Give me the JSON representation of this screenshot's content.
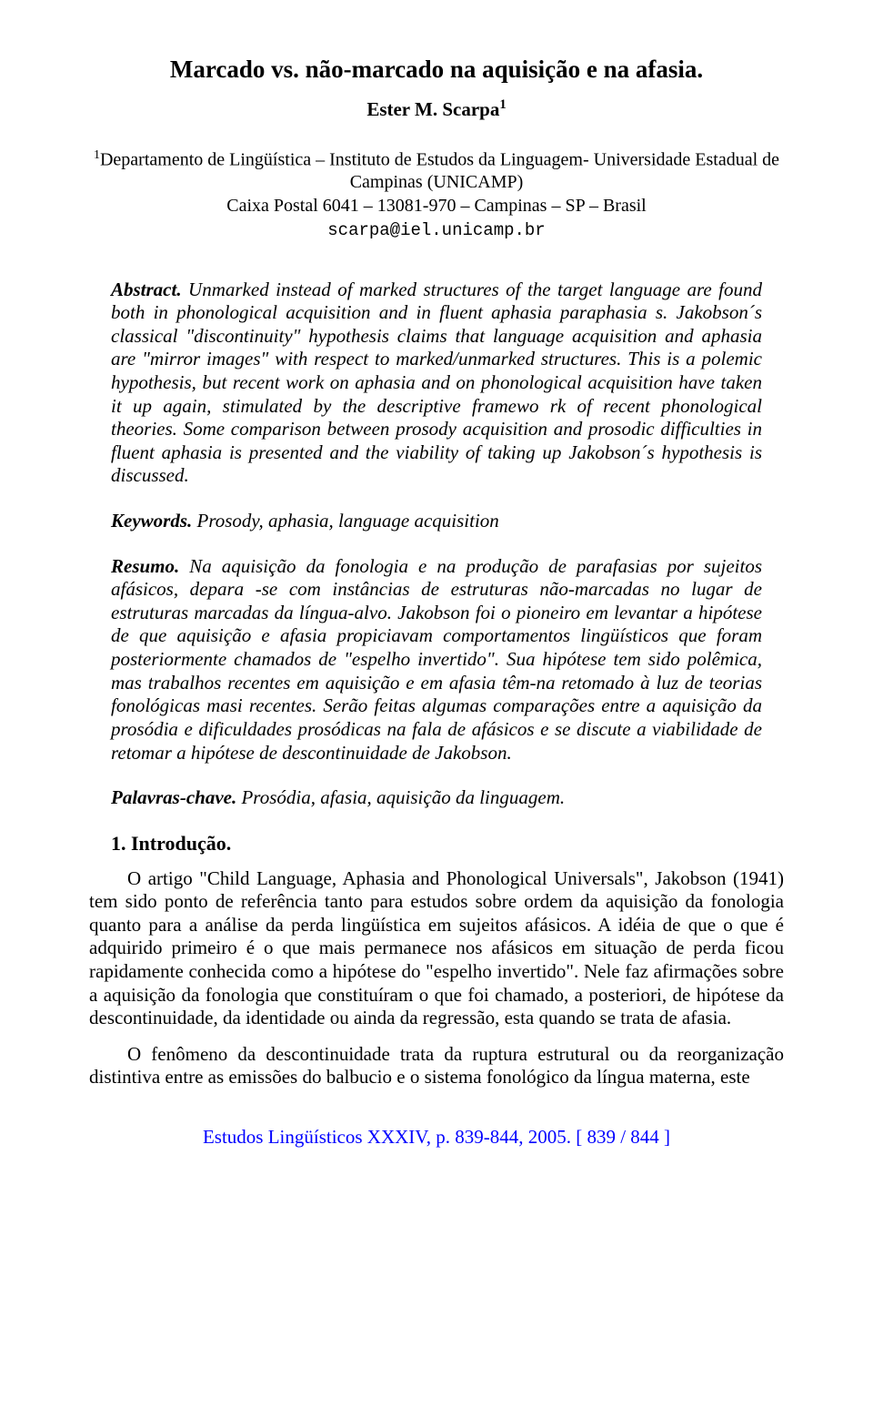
{
  "title": "Marcado vs. não-marcado na aquisição e na afasia.",
  "author_name": "Ester M. Scarpa",
  "author_sup": "1",
  "affiliation": {
    "line1_sup": "1",
    "line1": "Departamento de Lingüística – Instituto de Estudos da Linguagem- Universidade Estadual de Campinas (UNICAMP)",
    "line2": "Caixa Postal 6041 – 13081-970 – Campinas – SP – Brasil",
    "email": "scarpa@iel.unicamp.br"
  },
  "abstract": {
    "label": "Abstract.",
    "text": "Unmarked instead of marked structures of the target language are found both in phonological acquisition and in fluent aphasia paraphasia s. Jakobson´s classical \"discontinuity\" hypothesis claims that language acquisition and aphasia are \"mirror images\" with respect to marked/unmarked structures. This is a polemic hypothesis, but recent work on aphasia and on phonological acquisition have taken it up again, stimulated by the descriptive framewo rk of recent phonological theories. Some comparison between prosody acquisition and prosodic difficulties in fluent aphasia is presented and the viability of taking up Jakobson´s hypothesis is discussed."
  },
  "keywords": {
    "label": "Keywords.",
    "text": "Prosody, aphasia, language acquisition"
  },
  "resumo": {
    "label": "Resumo.",
    "text": "Na aquisição da fonologia e na produção de parafasias por sujeitos afásicos, depara -se com instâncias de estruturas não-marcadas no lugar de estruturas marcadas da língua-alvo. Jakobson foi o pioneiro em levantar a hipótese de que aquisição e afasia propiciavam comportamentos lingüísticos que foram posteriormente chamados de \"espelho invertido\". Sua hipótese tem sido polêmica, mas trabalhos recentes em aquisição e em afasia têm-na retomado à luz de teorias fonológicas masi recentes. Serão feitas algumas comparações entre a aquisição da prosódia e dificuldades prosódicas na fala de afásicos e se discute a viabilidade de retomar a hipótese de descontinuidade de Jakobson."
  },
  "palavras": {
    "label": "Palavras-chave.",
    "text": "Prosódia, afasia, aquisição da linguagem."
  },
  "section1": {
    "heading": "1. Introdução.",
    "p1": "O artigo \"Child Language, Aphasia and Phonological Universals\", Jakobson (1941) tem sido ponto de referência tanto para estudos sobre ordem da aquisição da fonologia quanto para a análise da perda lingüística em sujeitos afásicos. A idéia de que o que é adquirido primeiro é o que mais permanece nos afásicos em situação de perda ficou rapidamente conhecida como a hipótese do \"espelho invertido\". Nele faz afirmações sobre a aquisição da fonologia que constituíram o que foi chamado, a posteriori, de hipótese da descontinuidade, da identidade ou ainda da regressão, esta quando se trata de afasia.",
    "p2": "O fenômeno da descontinuidade trata da ruptura estrutural ou da reorganização distintiva entre as emissões do balbucio e o sistema fonológico da língua materna, este"
  },
  "footer": "Estudos Lingüísticos XXXIV, p. 839-844, 2005. [ 839 / 844 ]"
}
